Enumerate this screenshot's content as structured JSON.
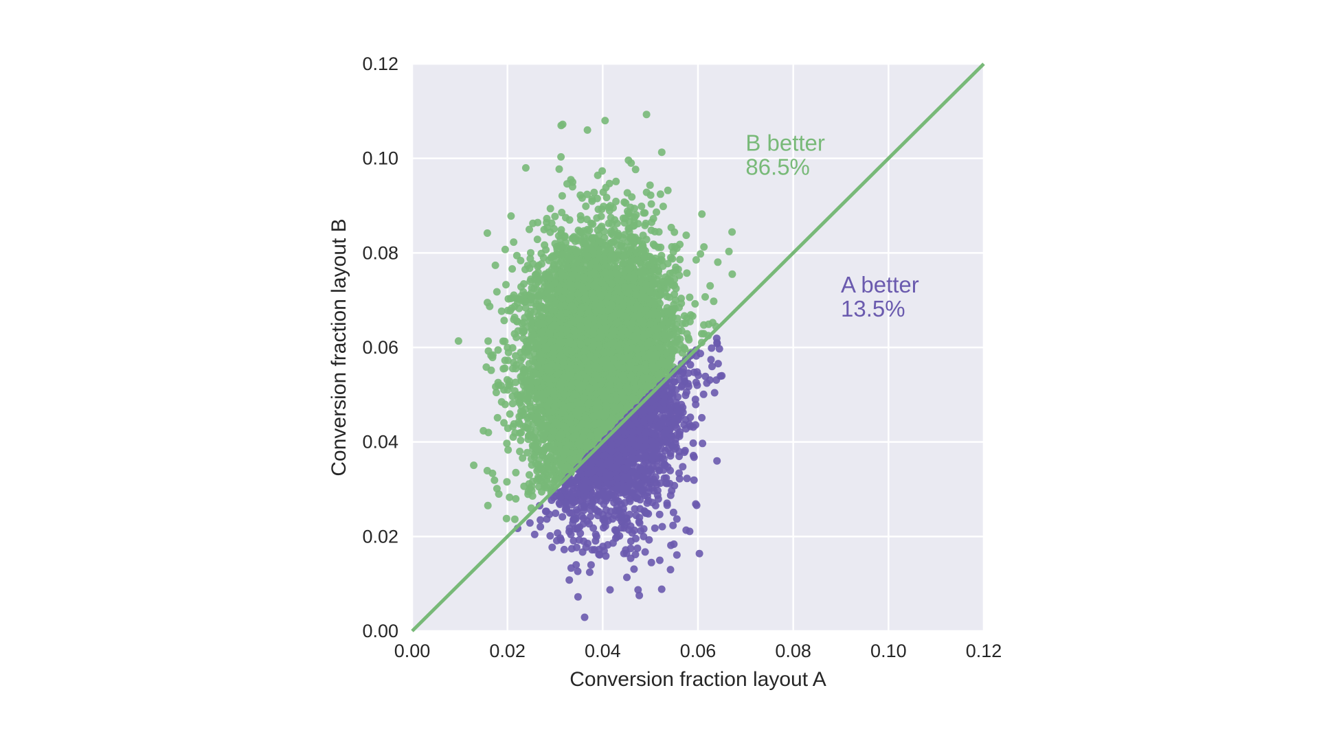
{
  "chart_data": {
    "type": "scatter",
    "title": "",
    "xlabel": "Conversion fraction layout A",
    "ylabel": "Conversion fraction layout B",
    "xlim": [
      0.0,
      0.12
    ],
    "ylim": [
      0.0,
      0.12
    ],
    "xticks": [
      "0.00",
      "0.02",
      "0.04",
      "0.06",
      "0.08",
      "0.10",
      "0.12"
    ],
    "yticks": [
      "0.00",
      "0.02",
      "0.04",
      "0.06",
      "0.08",
      "0.10",
      "0.12"
    ],
    "grid": true,
    "background_color": "#eaeaf2",
    "diagonal_line": {
      "from": [
        0.0,
        0.0
      ],
      "to": [
        0.12,
        0.12
      ],
      "color": "#78b978"
    },
    "series": [
      {
        "color": "#78b978"
      },
      {
        "color": "#6a5aae"
      }
    ],
    "point_cloud": {
      "mean": [
        0.04,
        0.055
      ],
      "std": [
        0.0075,
        0.0135
      ],
      "points_rendered": 9000
    },
    "sample_points": {
      "b_better": [
        [
          0.0492,
          0.1093
        ],
        [
          0.0405,
          0.108
        ],
        [
          0.0316,
          0.1072
        ],
        [
          0.0665,
          0.0803
        ],
        [
          0.0672,
          0.0755
        ],
        [
          0.0198,
          0.0238
        ],
        [
          0.0158,
          0.0695
        ],
        [
          0.016,
          0.042
        ]
      ],
      "a_better": [
        [
          0.0403,
          0.017
        ],
        [
          0.0473,
          0.0175
        ],
        [
          0.065,
          0.054
        ],
        [
          0.064,
          0.061
        ],
        [
          0.064,
          0.036
        ],
        [
          0.036,
          0.019
        ],
        [
          0.025,
          0.026
        ]
      ]
    },
    "annotations": [
      {
        "id": "b",
        "line1": "B better",
        "line2": "86.5%",
        "x": 0.07,
        "y": 0.1,
        "color": "#78b978"
      },
      {
        "id": "a",
        "line1": "A better",
        "line2": "13.5%",
        "x": 0.09,
        "y": 0.07,
        "color": "#6a5aae"
      }
    ]
  }
}
